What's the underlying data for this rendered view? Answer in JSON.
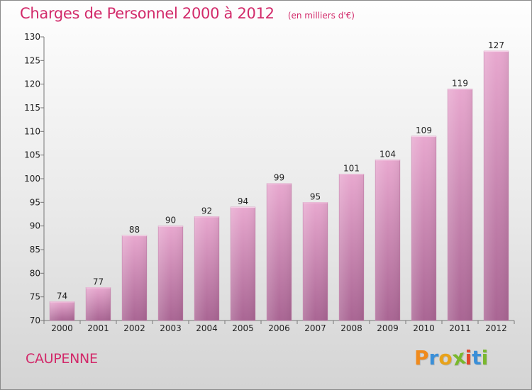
{
  "header": {
    "title": "Charges de Personnel 2000 à 2012",
    "subtitle": "(en milliers d'€)"
  },
  "footer": {
    "commune": "CAUPENNE",
    "brand": "Proxiti"
  },
  "colors": {
    "title": "#d22a6a",
    "bar_light": "#e8a8cf",
    "bar_dark": "#a96593",
    "brand_letters": [
      "#f08a1c",
      "#3a8fd8",
      "#e8a21a",
      "#7ab82e",
      "#e2462a",
      "#3a8fd8",
      "#7ab82e"
    ]
  },
  "chart_data": {
    "type": "bar",
    "title": "Charges de Personnel 2000 à 2012",
    "subtitle": "(en milliers d'€)",
    "categories": [
      "2000",
      "2001",
      "2002",
      "2003",
      "2004",
      "2005",
      "2006",
      "2007",
      "2008",
      "2009",
      "2010",
      "2011",
      "2012"
    ],
    "values": [
      74,
      77,
      88,
      90,
      92,
      94,
      99,
      95,
      101,
      104,
      109,
      119,
      127
    ],
    "ylim": [
      70,
      130
    ],
    "yticks": [
      70,
      75,
      80,
      85,
      90,
      95,
      100,
      105,
      110,
      115,
      120,
      125,
      130
    ],
    "xlabel": "",
    "ylabel": "",
    "grid": false,
    "data_labels": true
  }
}
